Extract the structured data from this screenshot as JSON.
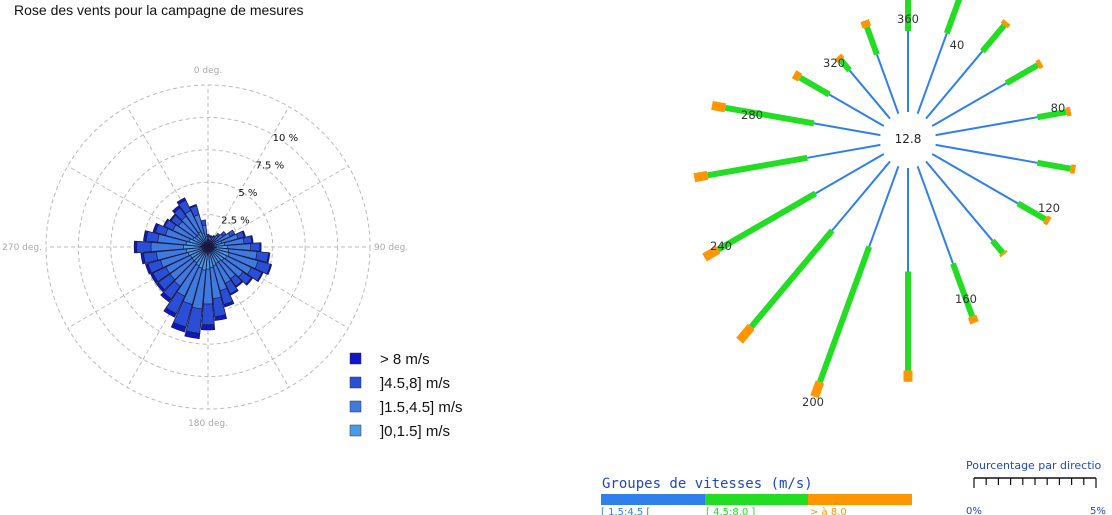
{
  "title": "Rose des vents pour la campagne de mesures",
  "colors": {
    "band1": "#4a9be8",
    "band2": "#3f7ae0",
    "band3": "#2a4fd6",
    "band4": "#0f16c8",
    "speed_low": "#2f80ed",
    "speed_mid": "#22dd22",
    "speed_high": "#ff9500"
  },
  "chart_data": [
    {
      "type": "polar-bar",
      "angle_labels": [
        "0 deg.",
        "90 deg.",
        "180 deg.",
        "270 deg."
      ],
      "radial_labels": [
        "2.5 %",
        "5 %",
        "7.5 %",
        "10 %"
      ],
      "rlim": [
        0,
        12.5
      ],
      "grid": true,
      "legend_position": "bottom-right",
      "series": [
        {
          "name": "]0,1.5] m/s"
        },
        {
          "name": "]1.5,4.5] m/s"
        },
        {
          "name": "]4.5,8] m/s"
        },
        {
          "name": "> 8 m/s"
        }
      ],
      "legend_order": [
        "> 8 m/s",
        "]4.5,8] m/s",
        "]1.5,4.5] m/s",
        "]0,1.5] m/s"
      ],
      "directions": [
        0,
        10,
        20,
        30,
        40,
        50,
        60,
        70,
        80,
        90,
        100,
        110,
        120,
        130,
        140,
        150,
        160,
        170,
        180,
        190,
        200,
        210,
        220,
        230,
        240,
        250,
        260,
        270,
        280,
        290,
        300,
        310,
        320,
        330,
        340,
        350
      ],
      "values": [
        [
          0.5,
          0.3,
          0.2,
          0.0
        ],
        [
          0.5,
          0.3,
          0.1,
          0.0
        ],
        [
          0.5,
          0.3,
          0.1,
          0.0
        ],
        [
          0.5,
          0.4,
          0.1,
          0.0
        ],
        [
          0.6,
          0.5,
          0.2,
          0.0
        ],
        [
          0.7,
          0.7,
          0.3,
          0.0
        ],
        [
          0.9,
          1.0,
          0.4,
          0.0
        ],
        [
          1.1,
          1.3,
          0.5,
          0.1
        ],
        [
          1.3,
          1.5,
          0.6,
          0.1
        ],
        [
          1.5,
          1.8,
          0.7,
          0.1
        ],
        [
          1.6,
          2.2,
          0.9,
          0.1
        ],
        [
          1.7,
          2.3,
          1.0,
          0.1
        ],
        [
          1.6,
          2.1,
          0.9,
          0.1
        ],
        [
          1.5,
          1.8,
          0.8,
          0.1
        ],
        [
          1.4,
          1.6,
          0.7,
          0.1
        ],
        [
          1.4,
          1.7,
          0.9,
          0.1
        ],
        [
          1.5,
          2.0,
          1.1,
          0.2
        ],
        [
          1.6,
          2.4,
          1.4,
          0.3
        ],
        [
          1.7,
          2.7,
          1.6,
          0.4
        ],
        [
          1.8,
          3.0,
          1.9,
          0.4
        ],
        [
          1.7,
          2.9,
          1.8,
          0.4
        ],
        [
          1.6,
          2.6,
          1.5,
          0.3
        ],
        [
          1.5,
          2.2,
          1.2,
          0.3
        ],
        [
          1.5,
          2.1,
          1.1,
          0.2
        ],
        [
          1.5,
          2.1,
          1.1,
          0.2
        ],
        [
          1.6,
          2.2,
          1.0,
          0.2
        ],
        [
          1.7,
          2.3,
          1.0,
          0.2
        ],
        [
          1.9,
          2.5,
          1.1,
          0.2
        ],
        [
          1.7,
          2.2,
          0.9,
          0.2
        ],
        [
          1.5,
          1.9,
          0.8,
          0.2
        ],
        [
          1.3,
          1.7,
          0.7,
          0.1
        ],
        [
          1.2,
          1.6,
          0.7,
          0.1
        ],
        [
          1.2,
          1.7,
          0.8,
          0.2
        ],
        [
          1.3,
          1.8,
          0.9,
          0.2
        ],
        [
          1.1,
          1.5,
          0.7,
          0.1
        ],
        [
          0.8,
          0.9,
          0.4,
          0.0
        ]
      ]
    },
    {
      "type": "radial-bar",
      "center_value": "12.8",
      "direction_labels": [
        "360",
        "40",
        "80",
        "120",
        "160",
        "200",
        "240",
        "280",
        "320"
      ],
      "series": [
        {
          "name": "[ 1.5:4.5 ["
        },
        {
          "name": "[ 4.5:8.0 ]"
        },
        {
          "name": "> à 8.0"
        }
      ],
      "directions": [
        0,
        20,
        40,
        60,
        80,
        100,
        120,
        140,
        160,
        180,
        200,
        220,
        240,
        260,
        280,
        300,
        320,
        340
      ],
      "values": [
        [
          3.6,
          2.3,
          0.3
        ],
        [
          3.8,
          2.6,
          0.3
        ],
        [
          3.9,
          1.5,
          0.2
        ],
        [
          3.8,
          1.6,
          0.2
        ],
        [
          4.6,
          1.3,
          0.2
        ],
        [
          4.6,
          1.5,
          0.2
        ],
        [
          4.4,
          1.4,
          0.2
        ],
        [
          4.6,
          0.7,
          0.1
        ],
        [
          4.6,
          2.5,
          0.3
        ],
        [
          4.6,
          4.4,
          0.5
        ],
        [
          3.8,
          6.4,
          0.7
        ],
        [
          4.0,
          5.6,
          0.8
        ],
        [
          3.5,
          5.0,
          0.7
        ],
        [
          3.3,
          4.5,
          0.6
        ],
        [
          3.0,
          4.0,
          0.6
        ],
        [
          2.8,
          1.5,
          0.3
        ],
        [
          2.8,
          0.6,
          0.2
        ],
        [
          2.8,
          1.3,
          0.3
        ]
      ],
      "speed_group_title": "Groupes de vitesses (m/s)",
      "scale_title": "Pourcentage par directio",
      "scale_min_label": "0%",
      "scale_max_label": "5%"
    }
  ]
}
